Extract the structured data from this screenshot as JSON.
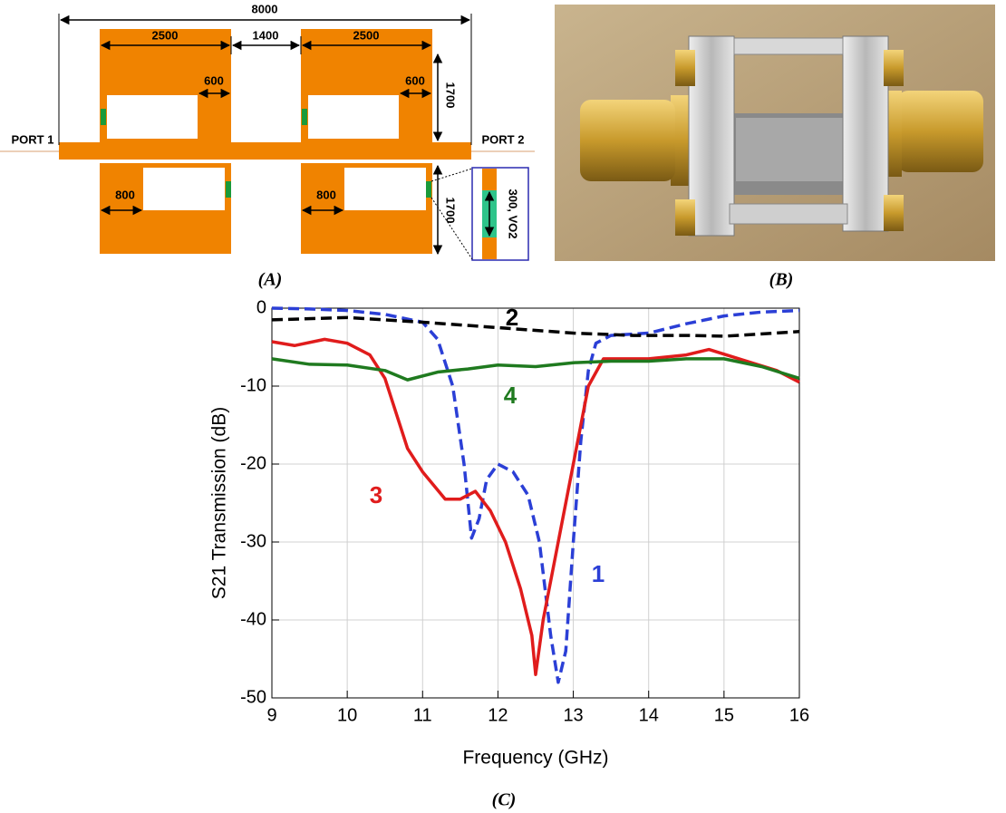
{
  "diagram": {
    "total_width": "8000",
    "left_width": "2500",
    "gap": "1400",
    "right_width": "2500",
    "top_left_arm": "600",
    "top_right_arm": "600",
    "top_height": "1700",
    "port1": "PORT 1",
    "port2": "PORT 2",
    "bottom_left_arm": "800",
    "bottom_right_arm": "800",
    "bottom_height": "1700",
    "switch": "300, VO2"
  },
  "captions": {
    "a": "(A)",
    "b": "(B)",
    "c": "(C)"
  },
  "chart_data": {
    "type": "line",
    "xlabel": "Frequency (GHz)",
    "ylabel": "S21 Transmission (dB)",
    "xlim": [
      9,
      16
    ],
    "ylim": [
      -50,
      0
    ],
    "xticks": [
      9,
      10,
      11,
      12,
      13,
      14,
      15,
      16
    ],
    "yticks": [
      -50,
      -40,
      -30,
      -20,
      -10,
      0
    ],
    "grid": true,
    "series": [
      {
        "name": "1",
        "color": "#2b3fd6",
        "dashed": true,
        "x": [
          9,
          9.5,
          10,
          10.5,
          11,
          11.2,
          11.4,
          11.55,
          11.65,
          11.75,
          11.85,
          12,
          12.2,
          12.4,
          12.55,
          12.7,
          12.8,
          12.9,
          13.0,
          13.1,
          13.2,
          13.3,
          13.5,
          14,
          14.5,
          15,
          15.5,
          16
        ],
        "values": [
          0,
          -0.1,
          -0.3,
          -0.8,
          -1.8,
          -4,
          -10,
          -20,
          -29.5,
          -27,
          -22,
          -20,
          -21,
          -24,
          -30,
          -42,
          -48,
          -44,
          -30,
          -17,
          -8,
          -4.5,
          -3.5,
          -3.2,
          -2,
          -1,
          -0.5,
          -0.3
        ]
      },
      {
        "name": "2",
        "color": "#000000",
        "dashed": true,
        "x": [
          9,
          10,
          11,
          12,
          13,
          13.8,
          14.5,
          15,
          16
        ],
        "values": [
          -1.5,
          -1.2,
          -1.8,
          -2.5,
          -3.2,
          -3.5,
          -3.5,
          -3.6,
          -3
        ]
      },
      {
        "name": "3",
        "color": "#e01c1c",
        "dashed": false,
        "x": [
          9,
          9.3,
          9.7,
          10,
          10.3,
          10.5,
          10.8,
          11,
          11.3,
          11.5,
          11.7,
          11.9,
          12.1,
          12.3,
          12.45,
          12.5,
          12.6,
          12.8,
          13.0,
          13.2,
          13.4,
          14,
          14.5,
          14.8,
          15.2,
          15.7,
          16
        ],
        "values": [
          -4.3,
          -4.8,
          -4,
          -4.5,
          -6,
          -9,
          -18,
          -21,
          -24.5,
          -24.5,
          -23.5,
          -26,
          -30,
          -36,
          -42,
          -47,
          -40,
          -30,
          -20,
          -10,
          -6.5,
          -6.5,
          -6,
          -5.3,
          -6.5,
          -8,
          -9.5
        ]
      },
      {
        "name": "4",
        "color": "#1f7a1f",
        "dashed": false,
        "x": [
          9,
          9.5,
          10,
          10.5,
          10.8,
          11.2,
          11.6,
          12,
          12.5,
          13,
          13.5,
          14,
          14.5,
          15,
          15.5,
          16
        ],
        "values": [
          -6.5,
          -7.2,
          -7.3,
          -8,
          -9.2,
          -8.2,
          -7.8,
          -7.3,
          -7.5,
          -7,
          -6.8,
          -6.8,
          -6.5,
          -6.5,
          -7.5,
          -9
        ]
      }
    ]
  }
}
